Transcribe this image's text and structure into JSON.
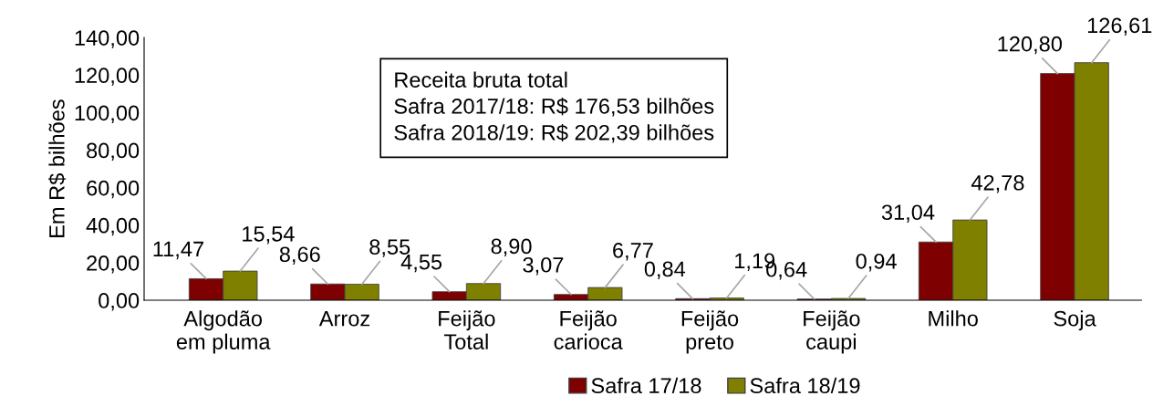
{
  "chart_data": {
    "type": "bar",
    "ylabel": "Em R$ bilhões",
    "categories": [
      "Algodão\nem pluma",
      "Arroz",
      "Feijão\nTotal",
      "Feijão\ncarioca",
      "Feijão\npreto",
      "Feijão\ncaupi",
      "Milho",
      "Soja"
    ],
    "series": [
      {
        "name": "Safra 17/18",
        "color": "#7f0000",
        "values": [
          11.47,
          8.66,
          4.55,
          3.07,
          0.84,
          0.64,
          31.04,
          120.8
        ],
        "value_labels": [
          "11,47",
          "8,66",
          "4,55",
          "3,07",
          "0,84",
          "0,64",
          "31,04",
          "120,80"
        ]
      },
      {
        "name": "Safra 18/19",
        "color": "#7f7f00",
        "values": [
          15.54,
          8.55,
          8.9,
          6.77,
          1.19,
          0.94,
          42.78,
          126.61
        ],
        "value_labels": [
          "15,54",
          "8,55",
          "8,90",
          "6,77",
          "1,19",
          "0,94",
          "42,78",
          "126,61"
        ]
      }
    ],
    "ylim": [
      0,
      140
    ],
    "yticks": [
      {
        "value": 0,
        "label": "0,00"
      },
      {
        "value": 20,
        "label": "20,00"
      },
      {
        "value": 40,
        "label": "40,00"
      },
      {
        "value": 60,
        "label": "60,00"
      },
      {
        "value": 80,
        "label": "80,00"
      },
      {
        "value": 100,
        "label": "100,00"
      },
      {
        "value": 120,
        "label": "120,00"
      },
      {
        "value": 140,
        "label": "140,00"
      }
    ],
    "annotations": [
      "Receita bruta total\nSafra 2017/18: R$ 176,53 bilhões\nSafra 2018/19: R$ 202,39 bilhões"
    ],
    "grid": false,
    "legend": "bottom"
  }
}
